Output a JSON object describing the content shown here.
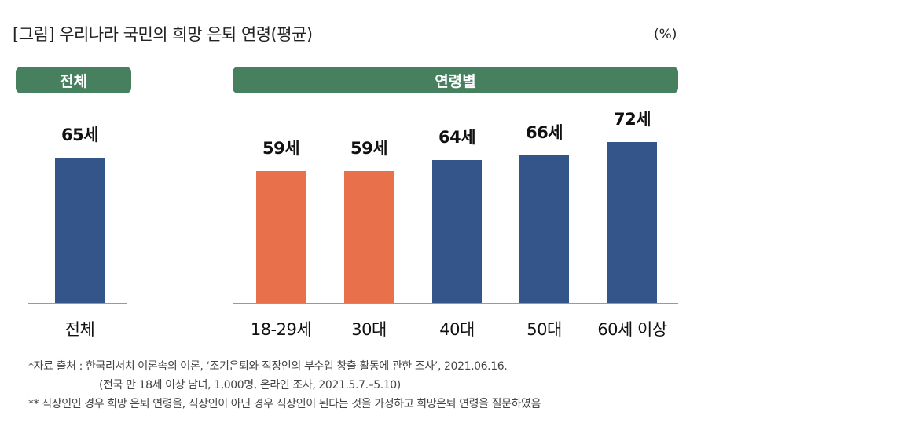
{
  "title": "[그림] 우리나라 국민의 희망 은퇴 연령(평균)",
  "unit": "(%)",
  "group_headers": [
    "전체",
    "연령별"
  ],
  "colors": {
    "blue": "#34558a",
    "orange": "#e8704a",
    "green": "#46805f"
  },
  "chart_data": {
    "type": "bar",
    "title": "우리나라 국민의 희망 은퇴 연령(평균)",
    "categories": [
      "전체",
      "18-29세",
      "30대",
      "40대",
      "50대",
      "60세 이상"
    ],
    "values": [
      65,
      59,
      59,
      64,
      66,
      72
    ],
    "data_labels": [
      "65세",
      "59세",
      "59세",
      "64세",
      "66세",
      "72세"
    ],
    "bar_colors": [
      "#34558a",
      "#e8704a",
      "#e8704a",
      "#34558a",
      "#34558a",
      "#34558a"
    ],
    "ylim": [
      0,
      80
    ],
    "grid": false
  },
  "notes": [
    "*자료 출처 : 한국리서치 여론속의 여론, ‘조기은퇴와 직장인의 부수입 창출 활동에 관한 조사’, 2021.06.16.",
    "(전국 만 18세 이상 남녀, 1,000명, 온라인 조사, 2021.5.7.–5.10)",
    "** 직장인인 경우 희망 은퇴 연령을, 직장인이 아닌 경우 직장인이 된다는 것을 가정하고 희망은퇴 연령을 질문하였음"
  ]
}
